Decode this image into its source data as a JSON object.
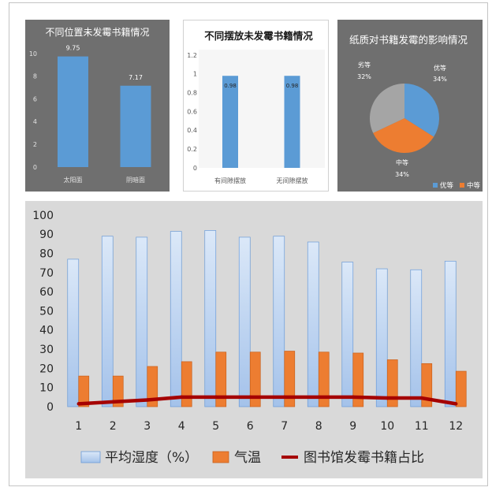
{
  "chart_data": [
    {
      "type": "bar",
      "title": "不同位置未发霉书籍情况",
      "categories": [
        "太阳面",
        "阴暗面"
      ],
      "values": [
        9.75,
        7.17
      ],
      "data_labels": [
        "9.75",
        "7.17"
      ],
      "ylim": [
        0,
        10
      ],
      "yticks": [
        "0",
        "2",
        "4",
        "6",
        "8",
        "10"
      ],
      "grid": false,
      "colors": {
        "background": "#6f6f6f",
        "bar": "#5b9bd5",
        "text": "#ffffff"
      }
    },
    {
      "type": "bar",
      "title": "不同摆放未发霉书籍情况",
      "categories": [
        "有间隙摆放",
        "无间隙摆放"
      ],
      "values": [
        0.98,
        0.98
      ],
      "data_labels": [
        "0.98",
        "0.98"
      ],
      "ylim": [
        0,
        1.2
      ],
      "yticks": [
        "0",
        "0.2",
        "0.4",
        "0.6",
        "0.8",
        "1",
        "1.2"
      ],
      "grid": false,
      "colors": {
        "background": "#ffffff",
        "bar": "#5b9bd5",
        "text": "#1a1a1a"
      }
    },
    {
      "type": "pie",
      "title": "纸质对书籍发霉的影响情况",
      "categories": [
        "优等",
        "中等",
        "劣等"
      ],
      "values": [
        34,
        34,
        32
      ],
      "data_labels": [
        "34%",
        "34%",
        "32%"
      ],
      "legend_position": "bottom",
      "colors": {
        "background": "#6f6f6f",
        "slices": [
          "#5b9bd5",
          "#ed7d31",
          "#a5a5a5"
        ],
        "text": "#ffffff"
      }
    },
    {
      "type": "bar",
      "categories": [
        "1",
        "2",
        "3",
        "4",
        "5",
        "6",
        "7",
        "8",
        "9",
        "10",
        "11",
        "12"
      ],
      "series": [
        {
          "name": "平均湿度（%）",
          "type": "bar",
          "color": "#a4c2ea",
          "values": [
            77,
            89,
            88.5,
            91.5,
            92,
            88.5,
            89,
            86,
            75.5,
            72,
            71.5,
            76
          ]
        },
        {
          "name": "气温",
          "type": "bar",
          "color": "#ed7d31",
          "values": [
            16,
            16,
            21,
            23.5,
            28.5,
            28.5,
            29,
            28.5,
            28,
            24.5,
            22.5,
            18.5
          ]
        },
        {
          "name": "图书馆发霉书籍占比",
          "type": "line",
          "color": "#a50000",
          "values": [
            1.5,
            2.5,
            3.5,
            5,
            5,
            5,
            5,
            5,
            5,
            4.5,
            4.5,
            1.5
          ]
        }
      ],
      "ylim": [
        0,
        100
      ],
      "yticks": [
        "0",
        "10",
        "20",
        "30",
        "40",
        "50",
        "60",
        "70",
        "80",
        "90",
        "100"
      ],
      "grid": false,
      "legend_position": "bottom",
      "colors": {
        "background": "#d9d9d9",
        "text": "#262626"
      }
    }
  ]
}
